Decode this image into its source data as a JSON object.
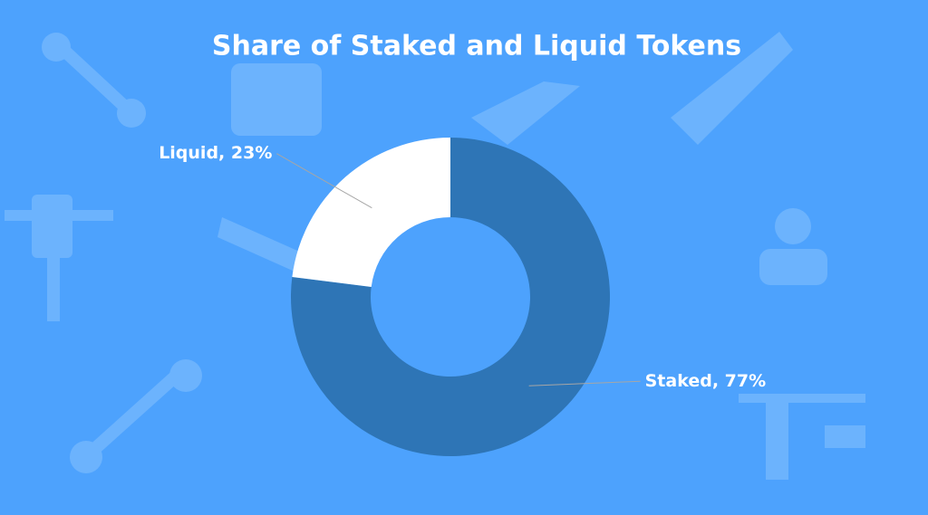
{
  "chart_data": {
    "type": "donut",
    "title": "Share of Staked and Liquid Tokens",
    "values": [
      77,
      23
    ],
    "value_labels": [
      "Staked, 77%",
      "Liquid, 23%"
    ],
    "colors": [
      "#2e75b6",
      "#ffffff"
    ]
  }
}
